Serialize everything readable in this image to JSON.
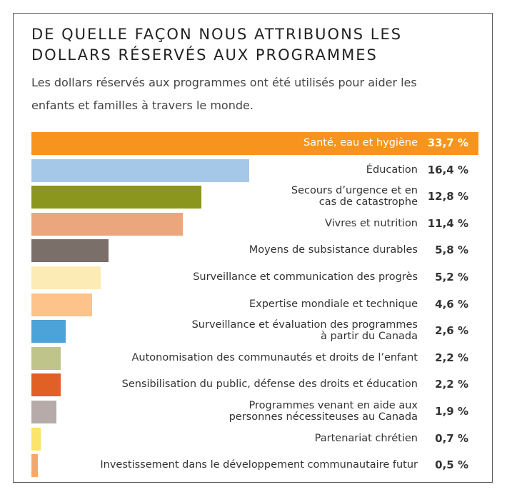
{
  "chart_data": {
    "type": "bar",
    "orientation": "horizontal",
    "title": [
      "DE QUELLE FAÇON NOUS ATTRIBUONS LES",
      "DOLLARS RÉSERVÉS AUX PROGRAMMES"
    ],
    "subtitle": [
      "Les dollars réservés aux programmes ont été utilisés pour aider les",
      "enfants et familles à travers le monde."
    ],
    "categories": [
      [
        "Santé, eau et hygiène"
      ],
      [
        "Éducation"
      ],
      [
        "Secours d’urgence et en",
        "cas de catastrophe"
      ],
      [
        "Vivres et nutrition"
      ],
      [
        "Moyens de subsistance durables"
      ],
      [
        "Surveillance et communication des progrès"
      ],
      [
        "Expertise mondiale et technique"
      ],
      [
        "Surveillance et évaluation des programmes",
        "à partir du Canada"
      ],
      [
        "Autonomisation des communautés et droits de l’enfant"
      ],
      [
        "Sensibilisation du public, défense des droits et éducation"
      ],
      [
        "Programmes venant en aide aux",
        "personnes nécessiteuses au Canada"
      ],
      [
        "Partenariat chrétien"
      ],
      [
        "Investissement dans le développement communautaire futur"
      ]
    ],
    "values": [
      33.7,
      16.4,
      12.8,
      11.4,
      5.8,
      5.2,
      4.6,
      2.6,
      2.2,
      2.2,
      1.9,
      0.7,
      0.5
    ],
    "value_labels": [
      "33,7 %",
      "16,4 %",
      "12,8 %",
      "11,4 %",
      "5,8 %",
      "5,2 %",
      "4,6 %",
      "2,6 %",
      "2,2 %",
      "2,2 %",
      "1,9 %",
      "0,7 %",
      "0,5 %"
    ],
    "colors": [
      "#f7941d",
      "#a6c8e8",
      "#8a961e",
      "#eba67e",
      "#7b6f6a",
      "#fdebb5",
      "#fdc38a",
      "#4ba3d9",
      "#bfc48a",
      "#e06025",
      "#b6aba8",
      "#fce36a",
      "#f6a86a"
    ]
  }
}
